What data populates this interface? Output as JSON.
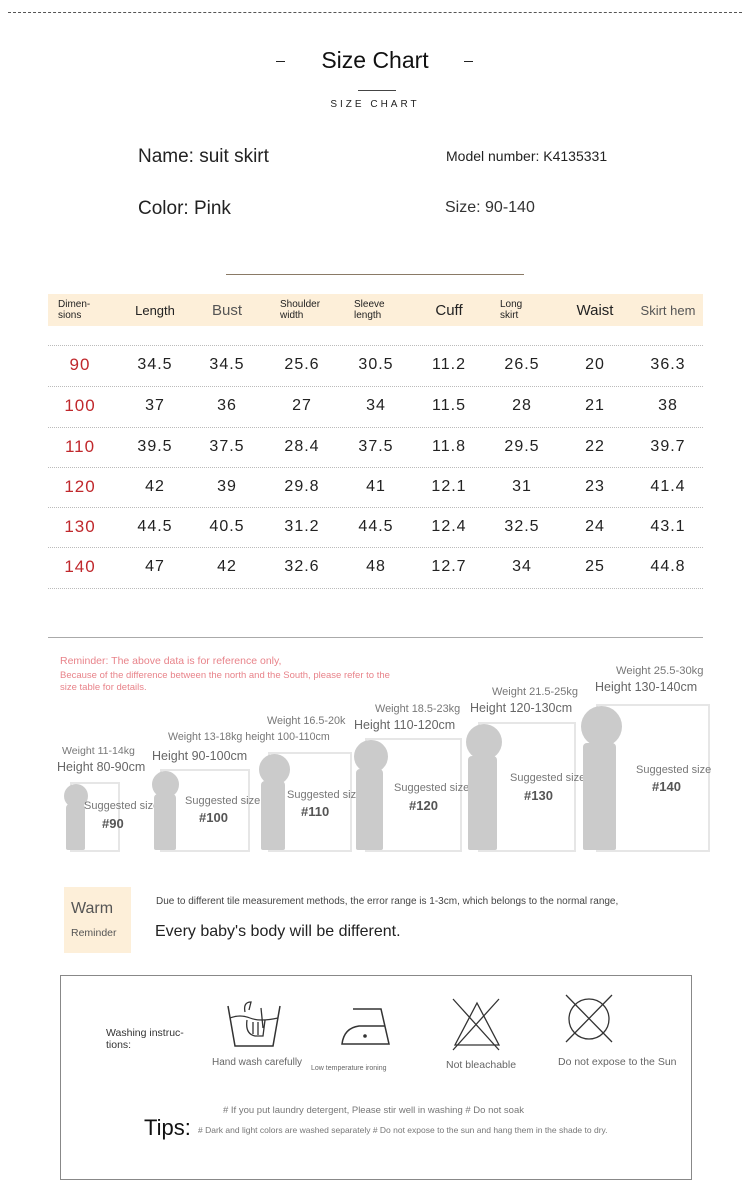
{
  "header": {
    "title": "Size Chart",
    "subtitle": "SIZE CHART"
  },
  "product": {
    "name": "Name: suit skirt",
    "model": "Model number: K4135331",
    "color": "Color: Pink",
    "size": "Size: 90-140"
  },
  "table": {
    "headers": [
      "Dimen-\nsions",
      "Length",
      "Bust",
      "Shoulder\nwidth",
      "Sleeve\nlength",
      "Cuff",
      "Long\nskirt",
      "Waist",
      "Skirt hem"
    ],
    "rows": [
      [
        "90",
        "34.5",
        "34.5",
        "25.6",
        "30.5",
        "11.2",
        "26.5",
        "20",
        "36.3"
      ],
      [
        "100",
        "37",
        "36",
        "27",
        "34",
        "11.5",
        "28",
        "21",
        "38"
      ],
      [
        "110",
        "39.5",
        "37.5",
        "28.4",
        "37.5",
        "11.8",
        "29.5",
        "22",
        "39.7"
      ],
      [
        "120",
        "42",
        "39",
        "29.8",
        "41",
        "12.1",
        "31",
        "23",
        "41.4"
      ],
      [
        "130",
        "44.5",
        "40.5",
        "31.2",
        "44.5",
        "12.4",
        "32.5",
        "24",
        "43.1"
      ],
      [
        "140",
        "47",
        "42",
        "32.6",
        "48",
        "12.7",
        "34",
        "25",
        "44.8"
      ]
    ]
  },
  "reminder": {
    "line1": "Reminder: The above data is for reference only,",
    "line2": "Because of the difference between the north and the South, please refer to the size table for details."
  },
  "figures": [
    {
      "weight": "Weight 11-14kg",
      "height": "Height 80-90cm",
      "label": "Suggested size",
      "size": "#90"
    },
    {
      "weight": "Weight 13-18kg height 100-110cm",
      "height": "Height 90-100cm",
      "label": "Suggested size",
      "size": "#100"
    },
    {
      "weight": "Weight 16.5-20k",
      "height": "",
      "label": "Suggested size",
      "size": "#110"
    },
    {
      "weight": "Weight 18.5-23kg",
      "height": "Height 110-120cm",
      "label": "Suggested size",
      "size": "#120"
    },
    {
      "weight": "Weight 21.5-25kg",
      "height": "Height 120-130cm",
      "label": "Suggested size",
      "size": "#130"
    },
    {
      "weight": "Weight 25.5-30kg",
      "height": "Height 130-140cm",
      "label": "Suggested size",
      "size": "#140"
    }
  ],
  "warm": {
    "title": "Warm",
    "subtitle": "Reminder",
    "note": "Due to different tile measurement methods, the error range is 1-3cm, which belongs to the normal range,",
    "main": "Every baby's body will be different."
  },
  "washing": {
    "label": "Washing instruc-\ntions:",
    "items": [
      {
        "icon": "hand-wash-icon",
        "label": "Hand wash carefully"
      },
      {
        "icon": "low-temp-iron-icon",
        "label": "Low temperature ironing"
      },
      {
        "icon": "no-bleach-icon",
        "label": "Not bleachable"
      },
      {
        "icon": "no-sun-icon",
        "label": "Do not expose to the Sun"
      }
    ],
    "tips_label": "Tips:",
    "tip1": "# If you put laundry detergent, Please stir well in washing # Do not soak",
    "tip2": "# Dark and light colors are washed separately # Do not expose to the sun and hang them in the shade to dry."
  },
  "colors": {
    "size_red": "#c0282c",
    "header_band": "#fdefd9",
    "reminder_pink": "#e8838a"
  }
}
